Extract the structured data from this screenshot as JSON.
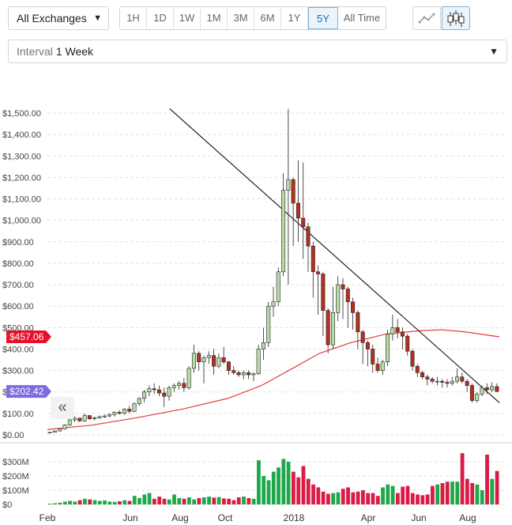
{
  "exchange_select": {
    "value": "All Exchanges"
  },
  "time_ranges": [
    {
      "label": "1H",
      "active": false
    },
    {
      "label": "1D",
      "active": false
    },
    {
      "label": "1W",
      "active": false
    },
    {
      "label": "1M",
      "active": false
    },
    {
      "label": "3M",
      "active": false
    },
    {
      "label": "6M",
      "active": false
    },
    {
      "label": "1Y",
      "active": false
    },
    {
      "label": "5Y",
      "active": true
    },
    {
      "label": "All Time",
      "active": false
    }
  ],
  "chart_type_buttons": [
    {
      "icon": "line-chart-icon",
      "active": false
    },
    {
      "icon": "candlestick-icon",
      "active": true
    }
  ],
  "interval_select": {
    "label": "Interval",
    "value": "1 Week"
  },
  "price_badges": {
    "ma": "$457.06",
    "last": "$202.42"
  },
  "colors": {
    "up": "#b8dca8",
    "down": "#b5301f",
    "vol_up": "#1fa84a",
    "vol_down": "#d91b47",
    "ma": "#e23b3b",
    "badge_ma": "#e8102a",
    "badge_last": "#7b6be0"
  },
  "chart_data": {
    "type": "candlestick",
    "x_start": "2017-02-01",
    "x_end": "2018-09-30",
    "x_labels": [
      "Feb",
      "Jun",
      "Aug",
      "Oct",
      "2018",
      "Apr",
      "Jun",
      "Aug"
    ],
    "y_ticks": [
      "$0.00",
      "$100.00",
      "$200.00",
      "$300.00",
      "$400.00",
      "$500.00",
      "$600.00",
      "$700.00",
      "$800.00",
      "$900.00",
      "$1,000.00",
      "$1,100.00",
      "$1,200.00",
      "$1,300.00",
      "$1,400.00",
      "$1,500.00"
    ],
    "ylim": [
      0,
      1500
    ],
    "volume_ticks": [
      "$0",
      "$100M",
      "$200M",
      "$300M"
    ],
    "volume_ylim": [
      0,
      350
    ],
    "candles": [
      [
        10,
        14,
        8,
        12
      ],
      [
        12,
        20,
        11,
        18
      ],
      [
        18,
        30,
        16,
        28
      ],
      [
        28,
        50,
        25,
        46
      ],
      [
        46,
        75,
        42,
        70
      ],
      [
        70,
        85,
        60,
        78
      ],
      [
        78,
        80,
        60,
        65
      ],
      [
        65,
        100,
        60,
        90
      ],
      [
        90,
        92,
        70,
        75
      ],
      [
        75,
        85,
        68,
        80
      ],
      [
        80,
        90,
        75,
        85
      ],
      [
        85,
        95,
        78,
        88
      ],
      [
        88,
        100,
        82,
        95
      ],
      [
        95,
        110,
        85,
        105
      ],
      [
        105,
        115,
        95,
        100
      ],
      [
        100,
        125,
        95,
        120
      ],
      [
        120,
        135,
        100,
        110
      ],
      [
        110,
        150,
        105,
        145
      ],
      [
        145,
        175,
        135,
        170
      ],
      [
        170,
        210,
        150,
        200
      ],
      [
        200,
        230,
        180,
        215
      ],
      [
        215,
        240,
        190,
        210
      ],
      [
        210,
        230,
        180,
        195
      ],
      [
        195,
        220,
        130,
        180
      ],
      [
        180,
        230,
        160,
        220
      ],
      [
        220,
        240,
        200,
        230
      ],
      [
        230,
        250,
        210,
        240
      ],
      [
        240,
        265,
        200,
        220
      ],
      [
        220,
        320,
        210,
        310
      ],
      [
        310,
        420,
        290,
        380
      ],
      [
        380,
        390,
        300,
        340
      ],
      [
        340,
        370,
        240,
        360
      ],
      [
        360,
        390,
        330,
        370
      ],
      [
        370,
        400,
        280,
        320
      ],
      [
        320,
        380,
        310,
        360
      ],
      [
        360,
        410,
        330,
        340
      ],
      [
        340,
        345,
        280,
        300
      ],
      [
        300,
        320,
        280,
        290
      ],
      [
        290,
        300,
        270,
        280
      ],
      [
        280,
        300,
        260,
        290
      ],
      [
        290,
        300,
        260,
        280
      ],
      [
        280,
        290,
        250,
        285
      ],
      [
        285,
        420,
        280,
        400
      ],
      [
        400,
        500,
        350,
        430
      ],
      [
        430,
        620,
        410,
        600
      ],
      [
        600,
        690,
        550,
        620
      ],
      [
        620,
        780,
        600,
        760
      ],
      [
        760,
        1220,
        740,
        1140
      ],
      [
        1140,
        1520,
        700,
        1190
      ],
      [
        1190,
        1200,
        880,
        1080
      ],
      [
        1080,
        1280,
        900,
        1010
      ],
      [
        1010,
        1270,
        820,
        970
      ],
      [
        970,
        990,
        760,
        880
      ],
      [
        880,
        900,
        640,
        760
      ],
      [
        760,
        790,
        560,
        750
      ],
      [
        750,
        760,
        460,
        580
      ],
      [
        580,
        590,
        380,
        420
      ],
      [
        420,
        690,
        400,
        570
      ],
      [
        570,
        740,
        530,
        700
      ],
      [
        700,
        730,
        540,
        680
      ],
      [
        680,
        690,
        500,
        620
      ],
      [
        620,
        640,
        490,
        570
      ],
      [
        570,
        580,
        400,
        480
      ],
      [
        480,
        490,
        330,
        430
      ],
      [
        430,
        440,
        320,
        400
      ],
      [
        400,
        420,
        290,
        330
      ],
      [
        330,
        360,
        290,
        300
      ],
      [
        300,
        350,
        280,
        340
      ],
      [
        340,
        490,
        320,
        470
      ],
      [
        470,
        560,
        440,
        500
      ],
      [
        500,
        540,
        450,
        480
      ],
      [
        480,
        500,
        400,
        460
      ],
      [
        460,
        470,
        370,
        390
      ],
      [
        390,
        400,
        300,
        320
      ],
      [
        320,
        330,
        270,
        290
      ],
      [
        290,
        300,
        260,
        270
      ],
      [
        270,
        280,
        230,
        260
      ],
      [
        260,
        270,
        240,
        250
      ],
      [
        250,
        270,
        230,
        250
      ],
      [
        250,
        260,
        220,
        245
      ],
      [
        245,
        260,
        220,
        240
      ],
      [
        240,
        270,
        230,
        250
      ],
      [
        250,
        310,
        240,
        270
      ],
      [
        270,
        290,
        240,
        250
      ],
      [
        250,
        260,
        200,
        230
      ],
      [
        230,
        240,
        150,
        160
      ],
      [
        160,
        200,
        150,
        190
      ],
      [
        190,
        230,
        180,
        220
      ],
      [
        220,
        240,
        190,
        210
      ],
      [
        210,
        245,
        200,
        225
      ],
      [
        225,
        240,
        200,
        202
      ]
    ],
    "volumes": [
      5,
      8,
      12,
      20,
      25,
      20,
      30,
      40,
      35,
      30,
      25,
      28,
      20,
      18,
      22,
      30,
      25,
      60,
      45,
      70,
      80,
      40,
      55,
      40,
      35,
      70,
      45,
      40,
      50,
      35,
      45,
      50,
      55,
      48,
      52,
      42,
      40,
      30,
      50,
      55,
      45,
      40,
      310,
      200,
      170,
      230,
      260,
      320,
      300,
      230,
      190,
      270,
      180,
      140,
      120,
      90,
      75,
      80,
      85,
      110,
      120,
      85,
      90,
      100,
      80,
      80,
      60,
      120,
      140,
      130,
      80,
      125,
      130,
      80,
      70,
      65,
      70,
      130,
      140,
      150,
      160,
      160,
      160,
      360,
      180,
      150,
      140,
      100,
      350,
      180,
      235
    ],
    "ma_line": [
      [
        "2017-02-01",
        25
      ],
      [
        "2017-04-01",
        45
      ],
      [
        "2017-06-01",
        80
      ],
      [
        "2017-08-01",
        120
      ],
      [
        "2017-10-01",
        170
      ],
      [
        "2017-11-15",
        230
      ],
      [
        "2018-01-01",
        320
      ],
      [
        "2018-02-01",
        380
      ],
      [
        "2018-03-15",
        430
      ],
      [
        "2018-05-01",
        470
      ],
      [
        "2018-06-15",
        485
      ],
      [
        "2018-07-15",
        490
      ],
      [
        "2018-08-15",
        480
      ],
      [
        "2018-09-30",
        457.06
      ]
    ],
    "trend_line": [
      [
        "2017-07-15",
        1520
      ],
      [
        "2018-09-30",
        150
      ]
    ]
  }
}
